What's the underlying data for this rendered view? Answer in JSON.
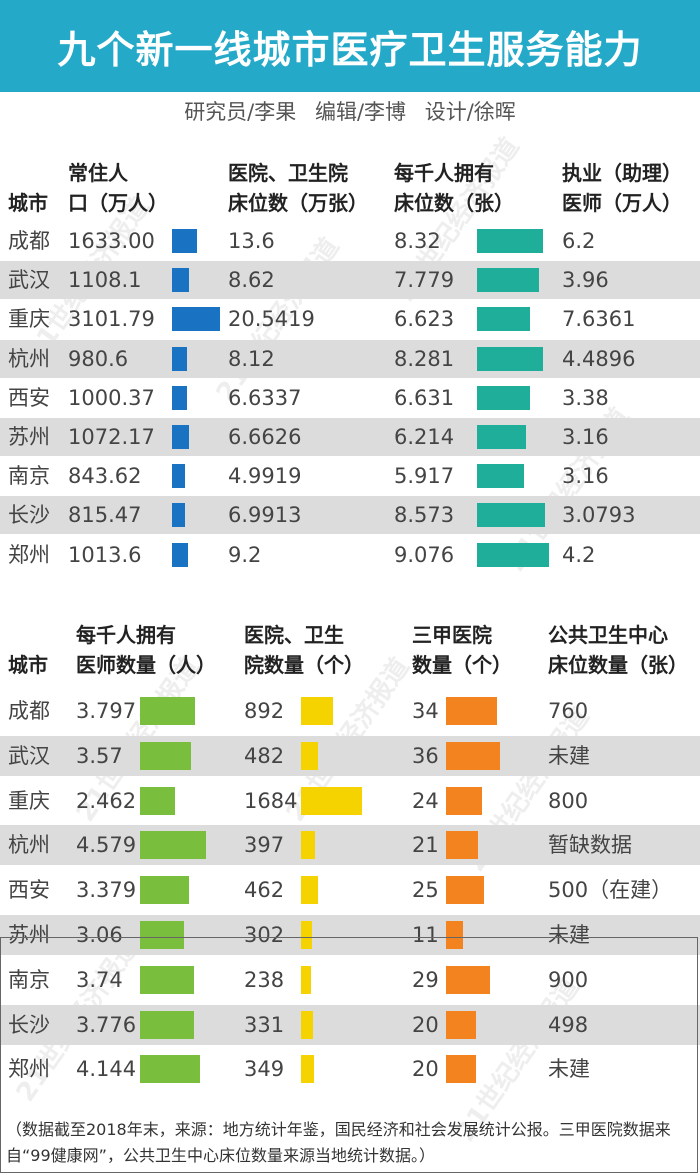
{
  "title": "九个新一线城市医疗卫生服务能力",
  "credits": [
    "研究员/李果",
    "编辑/李博",
    "设计/徐晖"
  ],
  "watermark": "21世纪经济报道",
  "colors": {
    "title_bg": "#25a9c9",
    "population_bar": "#1a73c2",
    "beds_per_thousand_bar": "#1fae9a",
    "doctors_per_thousand_bar": "#79bf3d",
    "institutions_bar": "#f5d300",
    "grade_3a_bar": "#f3831f",
    "stripe": "#dcdcdc"
  },
  "footnote": "（数据截至2018年末，来源：地方统计年鉴，国民经济和社会发展统计公报。三甲医院数据来自“99健康网”，公共卫生中心床位数量来源当地统计数据。）",
  "chart_data": [
    {
      "type": "table",
      "headers": {
        "city": "城市",
        "population": [
          "常住人",
          "口（万人）"
        ],
        "beds": [
          "医院、卫生院",
          "床位数（万张）"
        ],
        "beds_per_thousand": [
          "每千人拥有",
          "床位数（张）"
        ],
        "doctors": [
          "执业（助理）",
          "医师（万人）"
        ]
      },
      "rows": [
        {
          "city": "成都",
          "population": "1633.00",
          "beds": "13.6",
          "beds_per_thousand": "8.32",
          "doctors": "6.2"
        },
        {
          "city": "武汉",
          "population": "1108.1",
          "beds": "8.62",
          "beds_per_thousand": "7.779",
          "doctors": "3.96"
        },
        {
          "city": "重庆",
          "population": "3101.79",
          "beds": "20.5419",
          "beds_per_thousand": "6.623",
          "doctors": "7.6361"
        },
        {
          "city": "杭州",
          "population": "980.6",
          "beds": "8.12",
          "beds_per_thousand": "8.281",
          "doctors": "4.4896"
        },
        {
          "city": "西安",
          "population": "1000.37",
          "beds": "6.6337",
          "beds_per_thousand": "6.631",
          "doctors": "3.38"
        },
        {
          "city": "苏州",
          "population": "1072.17",
          "beds": "6.6626",
          "beds_per_thousand": "6.214",
          "doctors": "3.16"
        },
        {
          "city": "南京",
          "population": "843.62",
          "beds": "4.9919",
          "beds_per_thousand": "5.917",
          "doctors": "3.16"
        },
        {
          "city": "长沙",
          "population": "815.47",
          "beds": "6.9913",
          "beds_per_thousand": "8.573",
          "doctors": "3.0793"
        },
        {
          "city": "郑州",
          "population": "1013.6",
          "beds": "9.2",
          "beds_per_thousand": "9.076",
          "doctors": "4.2"
        }
      ],
      "bars": {
        "population": [
          1633.0,
          1108.1,
          3101.79,
          980.6,
          1000.37,
          1072.17,
          843.62,
          815.47,
          1013.6
        ],
        "beds_per_thousand": [
          8.32,
          7.779,
          6.623,
          8.281,
          6.631,
          6.214,
          5.917,
          8.573,
          9.076
        ]
      }
    },
    {
      "type": "table",
      "headers": {
        "city": "城市",
        "doctors_per_thousand": [
          "每千人拥有",
          "医师数量（人）"
        ],
        "institutions": [
          "医院、卫生",
          "院数量（个）"
        ],
        "grade_3a": [
          "三甲医院",
          "数量（个）"
        ],
        "public_health_beds": [
          "公共卫生中心",
          "床位数量（张）"
        ]
      },
      "rows": [
        {
          "city": "成都",
          "doctors_per_thousand": "3.797",
          "institutions": "892",
          "grade_3a": "34",
          "public_health_beds": "760"
        },
        {
          "city": "武汉",
          "doctors_per_thousand": "3.57",
          "institutions": "482",
          "grade_3a": "36",
          "public_health_beds": "未建"
        },
        {
          "city": "重庆",
          "doctors_per_thousand": "2.462",
          "institutions": "1684",
          "grade_3a": "24",
          "public_health_beds": "800"
        },
        {
          "city": "杭州",
          "doctors_per_thousand": "4.579",
          "institutions": "397",
          "grade_3a": "21",
          "public_health_beds": "暂缺数据"
        },
        {
          "city": "西安",
          "doctors_per_thousand": "3.379",
          "institutions": "462",
          "grade_3a": "25",
          "public_health_beds": "500（在建）"
        },
        {
          "city": "苏州",
          "doctors_per_thousand": "3.06",
          "institutions": "302",
          "grade_3a": "11",
          "public_health_beds": "未建"
        },
        {
          "city": "南京",
          "doctors_per_thousand": "3.74",
          "institutions": "238",
          "grade_3a": "29",
          "public_health_beds": "900"
        },
        {
          "city": "长沙",
          "doctors_per_thousand": "3.776",
          "institutions": "331",
          "grade_3a": "20",
          "public_health_beds": "498"
        },
        {
          "city": "郑州",
          "doctors_per_thousand": "4.144",
          "institutions": "349",
          "grade_3a": "20",
          "public_health_beds": "未建"
        }
      ],
      "bars": {
        "doctors_per_thousand": [
          3.797,
          3.57,
          2.462,
          4.579,
          3.379,
          3.06,
          3.74,
          3.776,
          4.144
        ],
        "institutions": [
          892,
          482,
          1684,
          397,
          462,
          302,
          238,
          331,
          349
        ],
        "grade_3a": [
          34,
          36,
          24,
          21,
          25,
          11,
          29,
          20,
          20
        ]
      }
    }
  ]
}
